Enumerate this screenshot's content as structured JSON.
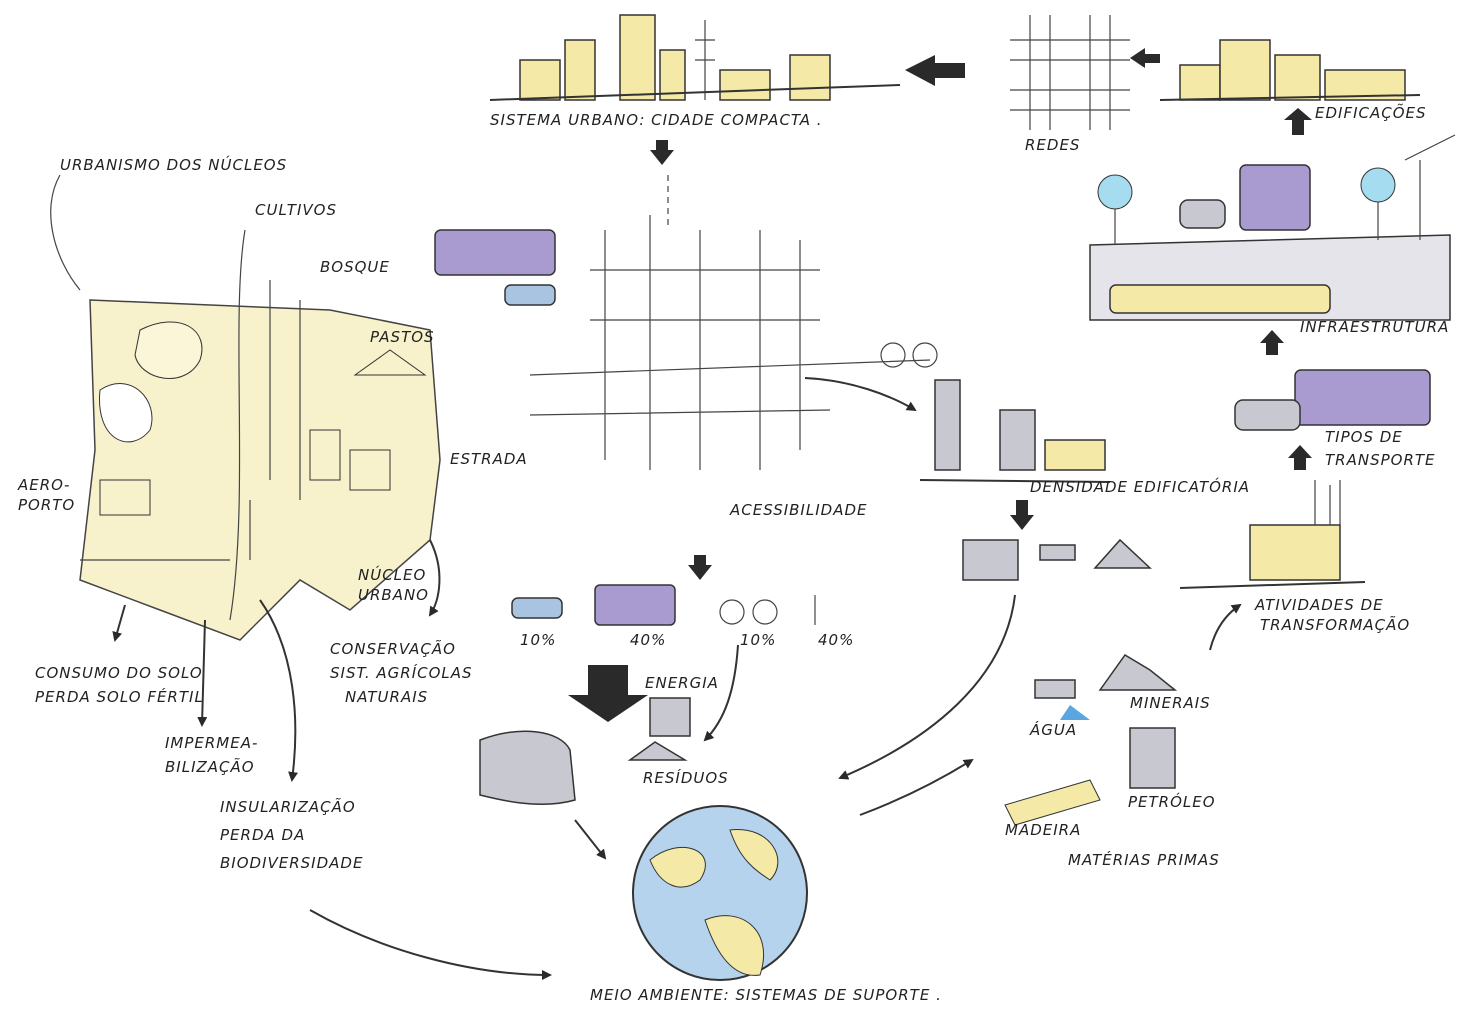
{
  "urban_system": {
    "title": "SISTEMA URBANO: CIDADE COMPACTA ."
  },
  "networks": {
    "label": "REDES"
  },
  "buildings": {
    "label": "EDIFICAÇÕES"
  },
  "nuclei": {
    "title": "URBANISMO DOS NÚCLEOS",
    "labels": {
      "crops": "CULTIVOS",
      "forest": "BOSQUE",
      "pastures": "PASTOS",
      "road": "ESTRADA",
      "airport": [
        "AERO-",
        "PORTO"
      ],
      "urban_core": [
        "NÚCLEO",
        "URBANO"
      ]
    },
    "impacts": {
      "soil": [
        "CONSUMO DO SOLO",
        "PERDA SOLO FÉRTIL"
      ],
      "sealing": [
        "IMPERMEA-",
        "BILIZAÇÃO"
      ],
      "insularization": [
        "INSULARIZAÇÃO",
        "PERDA DA",
        "BIODIVERSIDADE"
      ],
      "conservation": [
        "CONSERVAÇÃO",
        "SIST. AGRÍCOLAS",
        "NATURAIS"
      ]
    }
  },
  "accessibility": {
    "label": "ACESSIBILIDADE",
    "modal_split": [
      "10%",
      "40%",
      "10%",
      "40%"
    ]
  },
  "energy": "ENERGIA",
  "waste": "RESÍDUOS",
  "environment": "MEIO AMBIENTE: SISTEMAS DE SUPORTE .",
  "density": "DENSIDADE EDIFICATÓRIA",
  "infrastructure": "INFRAESTRUTURA",
  "transport_types": [
    "TIPOS DE",
    "TRANSPORTE"
  ],
  "transformation": [
    "ATIVIDADES DE",
    "TRANSFORMAÇÃO"
  ],
  "raw_materials": {
    "title": "MATÉRIAS PRIMAS",
    "water": "ÁGUA",
    "minerals": "MINERAIS",
    "wood": "MADEIRA",
    "oil": "PETRÓLEO"
  }
}
